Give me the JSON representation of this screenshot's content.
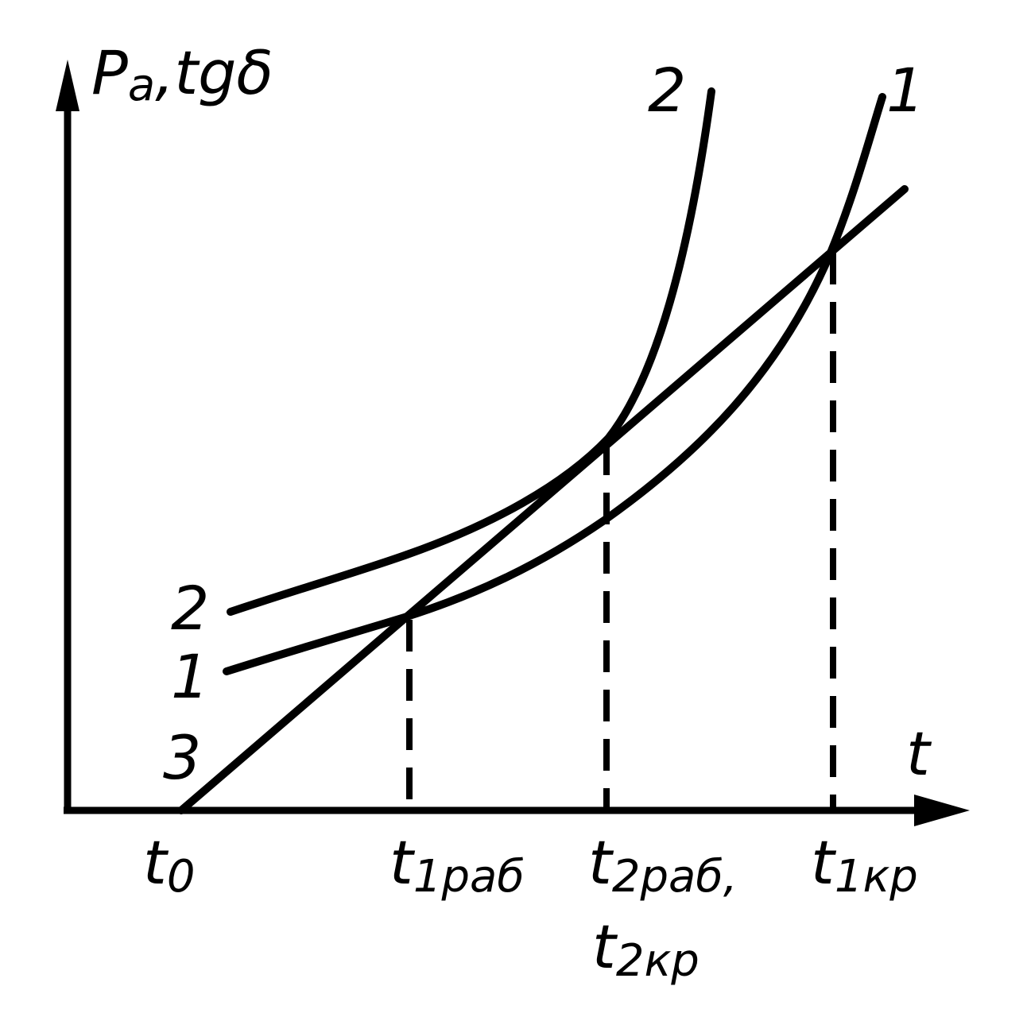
{
  "axes": {
    "y_label": {
      "base": "P",
      "sub": "a",
      "rest": ",tgδ"
    },
    "x_label": "t"
  },
  "curve_labels": {
    "top_2": "2",
    "top_1": "1",
    "left_2": "2",
    "left_1": "1",
    "left_3": "3"
  },
  "x_markers": [
    {
      "base": "t",
      "sub": "0"
    },
    {
      "base": "t",
      "sub": "1раб"
    },
    {
      "base": "t",
      "sub": "2раб,"
    },
    {
      "base": "t",
      "sub": "2кр"
    },
    {
      "base": "t",
      "sub": "1кр"
    }
  ]
}
